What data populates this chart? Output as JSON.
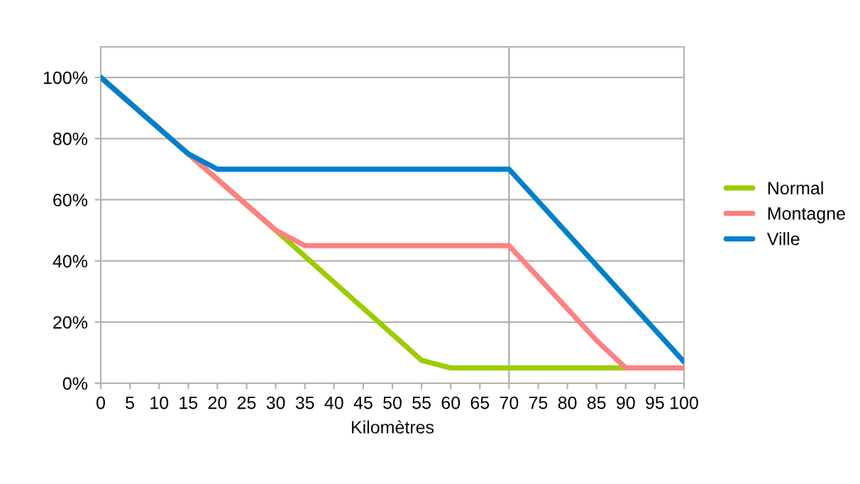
{
  "chart_data": {
    "type": "line",
    "xlabel": "Kilomètres",
    "xlim": [
      0,
      100
    ],
    "xticks": [
      0,
      5,
      10,
      15,
      20,
      25,
      30,
      35,
      40,
      45,
      50,
      55,
      60,
      65,
      70,
      75,
      80,
      85,
      90,
      95,
      100
    ],
    "ylim": [
      0,
      110
    ],
    "yticks": [
      {
        "value": 0,
        "label": "0%"
      },
      {
        "value": 20,
        "label": "20%"
      },
      {
        "value": 40,
        "label": "40%"
      },
      {
        "value": 60,
        "label": "60%"
      },
      {
        "value": 80,
        "label": "80%"
      },
      {
        "value": 100,
        "label": "100%"
      }
    ],
    "grid": "y",
    "legend": "right",
    "marker": "none",
    "line_style": "solid",
    "ref_lines": [
      {
        "axis": "x",
        "value": 70,
        "color": "#b3b3b3"
      }
    ],
    "series": [
      {
        "name": "Normal",
        "color": "#9ccc00",
        "x": [
          0,
          15,
          30,
          55,
          60,
          90
        ],
        "values": [
          100,
          75,
          50,
          7.5,
          5,
          5
        ]
      },
      {
        "name": "Montagne",
        "color": "#ff8080",
        "x": [
          0,
          15,
          30,
          35,
          70,
          85,
          90,
          100
        ],
        "values": [
          100,
          75,
          50,
          45,
          45,
          14,
          5,
          5
        ]
      },
      {
        "name": "Ville",
        "color": "#0080cc",
        "x": [
          0,
          15,
          20,
          70,
          100
        ],
        "values": [
          100,
          75,
          70,
          70,
          7
        ]
      }
    ]
  }
}
